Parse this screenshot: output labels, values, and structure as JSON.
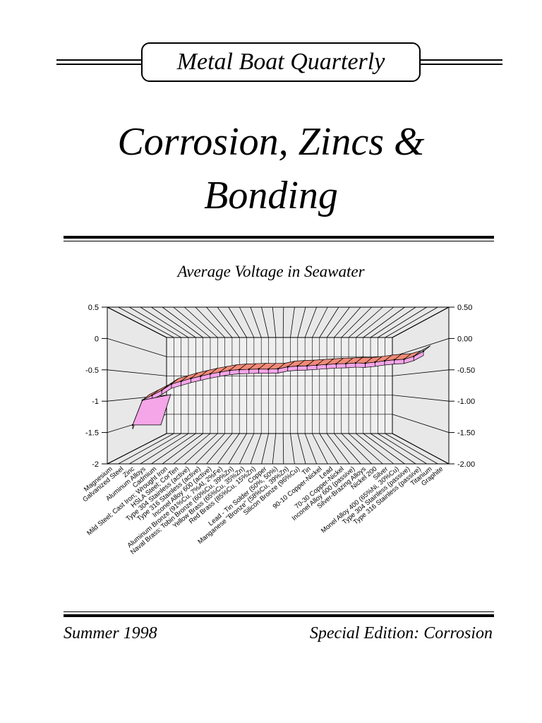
{
  "masthead": {
    "title": "Metal Boat Quarterly"
  },
  "main_title": {
    "line1": "Corrosion, Zincs &",
    "line2": "Bonding"
  },
  "footer": {
    "left": "Summer 1998",
    "right": "Special Edition: Corrosion"
  },
  "chart_data": {
    "type": "line",
    "title": "Average Voltage in Seawater",
    "three_d": true,
    "xlabel": "",
    "ylabel": "",
    "ylim": [
      -2,
      0.5
    ],
    "y_ticks_left": [
      "0.5",
      "0",
      "-0.5",
      "-1",
      "-1.5",
      "-2"
    ],
    "y_ticks_right": [
      "0.50",
      "0.00",
      "-0.50",
      "-1.00",
      "-1.50",
      "-2.00"
    ],
    "grid": true,
    "categories": [
      "Magnesium",
      "Galvanized Steel",
      "Zinc",
      "Aluminum Alloys",
      "Cadmium",
      "Mild Steel; Cast Iron; Wrought Iron",
      "HSLA Steel; CorTen",
      "Type 304 Stainless (active)",
      "Type 316 Stainless (active)",
      "Inconel Alloy 600 (active)",
      "Aluminum Bronze (91%Cu, 7%Al, 2%Fe)",
      "Naval Brass; Tobin Bronze (60%Cu, 39%Zn)",
      "Yellow Brass (65%Cu, 35%Zn)",
      "Red Brass (85%Cu, 15%Zn)",
      "Copper",
      "Lead - Tin Solder (50%, 50%)",
      "Manganese \"Bronze\" (58%Cu, 39%Zn)",
      "Silicon Bronze (96%Cu)",
      "Tin",
      "90-10 Copper-Nickel",
      "Lead",
      "70-30 Copper-Nickel",
      "Inconel Alloy 600 (passive)",
      "Silver-Brazing Alloys",
      "Nickel 200",
      "Silver",
      "Monel Alloy 400 (65%Ni, 30%Cu)",
      "Type 304 Stainless (passive)",
      "Type 316 Stainless (passive)",
      "Titanium",
      "Graphite"
    ],
    "values": [
      -1.55,
      -1.05,
      -0.95,
      -0.85,
      -0.72,
      -0.66,
      -0.6,
      -0.55,
      -0.5,
      -0.46,
      -0.42,
      -0.4,
      -0.39,
      -0.38,
      -0.38,
      -0.37,
      -0.32,
      -0.3,
      -0.29,
      -0.27,
      -0.25,
      -0.23,
      -0.22,
      -0.2,
      -0.2,
      -0.17,
      -0.13,
      -0.1,
      -0.08,
      0.0,
      0.14
    ],
    "colors": {
      "ribbon_top": "#f08a78",
      "ribbon_front": "#f4a6e8",
      "ribbon_cap": "#999999",
      "wall": "#e8e8e8",
      "grid": "#000000"
    }
  }
}
